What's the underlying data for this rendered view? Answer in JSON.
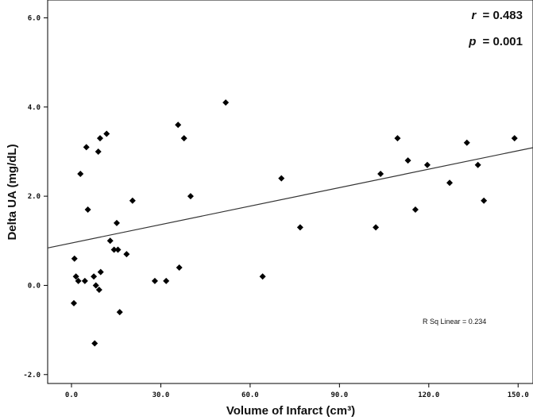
{
  "chart_data": {
    "type": "scatter",
    "xlabel": "Volume of Infarct (cm³)",
    "ylabel": "Delta UA (mg/dL)",
    "xlim": [
      -8,
      155
    ],
    "ylim": [
      -2.2,
      6.4
    ],
    "x_ticks": [
      "0.0",
      "30.0",
      "60.0",
      "90.0",
      "120.0",
      "150.0"
    ],
    "y_ticks": [
      "-2.0",
      "0.0",
      "2.0",
      "4.0",
      "6.0"
    ],
    "annotations": {
      "r_symbol": "r",
      "r_value": "= 0.483",
      "p_symbol": "p",
      "p_value": "= 0.001",
      "r_sq": "R Sq Linear = 0.234"
    },
    "fit_line": {
      "intercept": 0.95,
      "slope": 0.0138
    },
    "grid": false,
    "marker": "diamond",
    "marker_color": "#000000",
    "points": [
      [
        0.8,
        -0.4
      ],
      [
        1.0,
        0.6
      ],
      [
        1.5,
        0.2
      ],
      [
        2.3,
        0.1
      ],
      [
        3.0,
        2.5
      ],
      [
        4.5,
        0.1
      ],
      [
        5.0,
        3.1
      ],
      [
        5.5,
        1.7
      ],
      [
        7.5,
        0.2
      ],
      [
        7.8,
        -1.3
      ],
      [
        8.2,
        0.0
      ],
      [
        9.0,
        3.0
      ],
      [
        9.3,
        -0.1
      ],
      [
        9.6,
        3.3
      ],
      [
        9.8,
        0.3
      ],
      [
        11.8,
        3.4
      ],
      [
        13.0,
        1.0
      ],
      [
        14.3,
        0.8
      ],
      [
        15.2,
        1.4
      ],
      [
        15.6,
        0.8
      ],
      [
        16.2,
        -0.6
      ],
      [
        18.5,
        0.7
      ],
      [
        20.5,
        1.9
      ],
      [
        28.0,
        0.1
      ],
      [
        31.8,
        0.1
      ],
      [
        35.8,
        3.6
      ],
      [
        36.2,
        0.4
      ],
      [
        37.8,
        3.3
      ],
      [
        40.0,
        2.0
      ],
      [
        51.8,
        4.1
      ],
      [
        64.2,
        0.2
      ],
      [
        70.5,
        2.4
      ],
      [
        76.8,
        1.3
      ],
      [
        102.2,
        1.3
      ],
      [
        103.8,
        2.5
      ],
      [
        109.5,
        3.3
      ],
      [
        113.0,
        2.8
      ],
      [
        115.5,
        1.7
      ],
      [
        119.5,
        2.7
      ],
      [
        127.0,
        2.3
      ],
      [
        132.8,
        3.2
      ],
      [
        136.5,
        2.7
      ],
      [
        138.5,
        1.9
      ],
      [
        148.8,
        3.3
      ]
    ]
  }
}
